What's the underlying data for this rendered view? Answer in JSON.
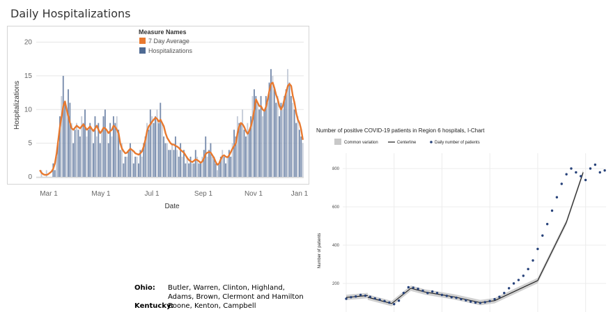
{
  "page_title": "Daily Hospitalizations",
  "regions": [
    {
      "state": "Ohio:",
      "counties": "Butler, Warren, Clinton, Highland, Adams, Brown, Clermont and Hamilton"
    },
    {
      "state": "Kentucky:",
      "counties": "Boone, Kenton, Campbell"
    }
  ],
  "chart_data": [
    {
      "type": "bar",
      "title": "",
      "xlabel": "Date",
      "ylabel": "Hospitalizations",
      "legend_title": "Measure Names",
      "legend_position": "top-center",
      "x_ticks": [
        "Mar 1",
        "May 1",
        "Jul 1",
        "Sep 1",
        "Nov 1",
        "Jan 1"
      ],
      "y_ticks": [
        0,
        5,
        10,
        15,
        20
      ],
      "ylim": [
        0,
        21.5
      ],
      "grid": "horizontal",
      "colors": {
        "bars": "#8a9bb5",
        "line": "#e8792f"
      },
      "series": [
        {
          "name": "7 Day Average",
          "kind": "line",
          "values": [
            1.0,
            0.6,
            0.4,
            0.3,
            0.3,
            0.4,
            0.6,
            0.8,
            1.2,
            2.0,
            3.5,
            5.5,
            7.5,
            9.0,
            10.5,
            11.2,
            10.0,
            9.0,
            8.0,
            7.2,
            7.0,
            7.3,
            7.6,
            7.4,
            7.2,
            7.5,
            7.8,
            7.4,
            7.0,
            7.2,
            7.5,
            7.1,
            6.8,
            7.2,
            7.6,
            7.0,
            6.5,
            6.8,
            7.3,
            7.2,
            6.9,
            6.5,
            6.8,
            7.0,
            7.6,
            7.4,
            7.0,
            6.5,
            5.0,
            4.2,
            3.8,
            3.5,
            3.6,
            3.9,
            4.2,
            4.0,
            3.8,
            3.5,
            3.4,
            3.3,
            3.5,
            3.8,
            4.5,
            5.5,
            6.8,
            7.5,
            7.8,
            8.2,
            8.5,
            8.8,
            8.6,
            8.2,
            8.5,
            8.0,
            7.5,
            6.5,
            5.8,
            5.4,
            5.0,
            4.8,
            4.8,
            4.6,
            4.5,
            4.3,
            4.0,
            3.8,
            3.6,
            3.2,
            2.8,
            2.5,
            2.3,
            2.2,
            2.4,
            2.6,
            2.5,
            2.3,
            2.1,
            2.3,
            2.8,
            3.4,
            3.6,
            3.7,
            3.6,
            3.2,
            2.8,
            2.2,
            1.8,
            2.0,
            2.6,
            3.1,
            3.2,
            3.0,
            2.9,
            3.2,
            3.7,
            4.2,
            4.6,
            5.0,
            6.5,
            7.5,
            8.0,
            7.8,
            7.4,
            6.8,
            6.4,
            6.8,
            7.5,
            8.5,
            10.0,
            11.5,
            11.0,
            10.5,
            10.5,
            10.0,
            9.8,
            10.4,
            11.5,
            12.8,
            13.8,
            14.0,
            13.2,
            12.2,
            11.5,
            10.5,
            10.0,
            10.5,
            11.5,
            12.5,
            13.5,
            13.8,
            13.5,
            12.0,
            11.0,
            9.5,
            8.5,
            8.0,
            7.0,
            5.5
          ]
        },
        {
          "name": "Hospitalizations",
          "kind": "bar",
          "values": [
            0,
            1,
            0,
            0,
            1,
            0,
            0,
            0,
            2,
            1,
            3,
            5,
            9,
            12,
            15,
            11,
            10,
            13,
            11,
            8,
            5,
            7,
            8,
            7,
            6,
            9,
            8,
            10,
            6,
            7,
            8,
            7,
            5,
            9,
            6,
            8,
            5,
            7,
            9,
            10,
            7,
            5,
            8,
            6,
            9,
            8,
            9,
            7,
            4,
            5,
            2,
            3,
            3,
            4,
            5,
            4,
            2,
            3,
            3,
            2,
            4,
            3,
            5,
            6,
            8,
            7,
            10,
            9,
            8,
            9,
            10,
            8,
            11,
            8,
            6,
            5,
            5,
            4,
            4,
            5,
            4,
            6,
            4,
            3,
            5,
            3,
            4,
            2,
            3,
            2,
            3,
            2,
            2,
            4,
            3,
            2,
            2,
            3,
            4,
            6,
            3,
            4,
            5,
            3,
            3,
            2,
            1,
            2,
            3,
            4,
            3,
            2,
            3,
            4,
            3,
            5,
            7,
            6,
            9,
            8,
            8,
            10,
            7,
            6,
            8,
            7,
            9,
            12,
            13,
            12,
            11,
            10,
            12,
            9,
            10,
            12,
            11,
            14,
            16,
            15,
            13,
            11,
            12,
            9,
            11,
            10,
            12,
            13,
            16,
            14,
            12,
            11,
            10,
            8,
            9,
            7,
            6,
            5
          ]
        }
      ]
    },
    {
      "type": "line",
      "title": "Number of positive COVID-19 patients in Region 6 hospitals, I-Chart",
      "xlabel": "",
      "ylabel": "Number of patients",
      "legend_position": "top-left",
      "legend": [
        "Common variation",
        "Centerline",
        "Daily number of patients"
      ],
      "y_ticks": [
        200,
        400,
        600,
        800
      ],
      "ylim": [
        80,
        880
      ],
      "grid": "both",
      "colors": {
        "band": "#c8c8c8",
        "centerline": "#1a1a1a",
        "points": "#27427a"
      },
      "centerline_segments": [
        {
          "x": [
            0,
            18
          ],
          "y": [
            127,
            137
          ]
        },
        {
          "x": [
            18,
            38
          ],
          "y": [
            128,
            95
          ]
        },
        {
          "x": [
            38,
            54
          ],
          "y": [
            95,
            175
          ]
        },
        {
          "x": [
            54,
            66
          ],
          "y": [
            175,
            155
          ]
        },
        {
          "x": [
            66,
            90
          ],
          "y": [
            155,
            130
          ]
        },
        {
          "x": [
            90,
            112
          ],
          "y": [
            130,
            100
          ]
        },
        {
          "x": [
            112,
            124
          ],
          "y": [
            100,
            110
          ]
        },
        {
          "x": [
            124,
            160
          ],
          "y": [
            110,
            215
          ]
        },
        {
          "x": [
            160,
            184
          ],
          "y": [
            215,
            520
          ]
        },
        {
          "x": [
            184,
            198
          ],
          "y": [
            520,
            780
          ]
        }
      ],
      "points": {
        "x": [
          0,
          4,
          8,
          12,
          16,
          20,
          24,
          28,
          32,
          36,
          40,
          44,
          48,
          52,
          56,
          60,
          64,
          68,
          72,
          76,
          80,
          84,
          88,
          92,
          96,
          100,
          104,
          108,
          112,
          116,
          120,
          124,
          128,
          132,
          136,
          140,
          144,
          148,
          152,
          156,
          160,
          164,
          168,
          172,
          176,
          180,
          184,
          188,
          192,
          196,
          200,
          204,
          208,
          212,
          216
        ],
        "y": [
          120,
          128,
          132,
          140,
          136,
          130,
          122,
          115,
          108,
          100,
          92,
          110,
          150,
          180,
          178,
          172,
          162,
          150,
          158,
          150,
          140,
          135,
          128,
          125,
          118,
          112,
          105,
          100,
          98,
          102,
          108,
          118,
          130,
          150,
          175,
          200,
          218,
          240,
          275,
          320,
          380,
          450,
          510,
          580,
          650,
          720,
          770,
          800,
          780,
          760,
          740,
          800,
          820,
          780,
          790
        ]
      }
    }
  ]
}
